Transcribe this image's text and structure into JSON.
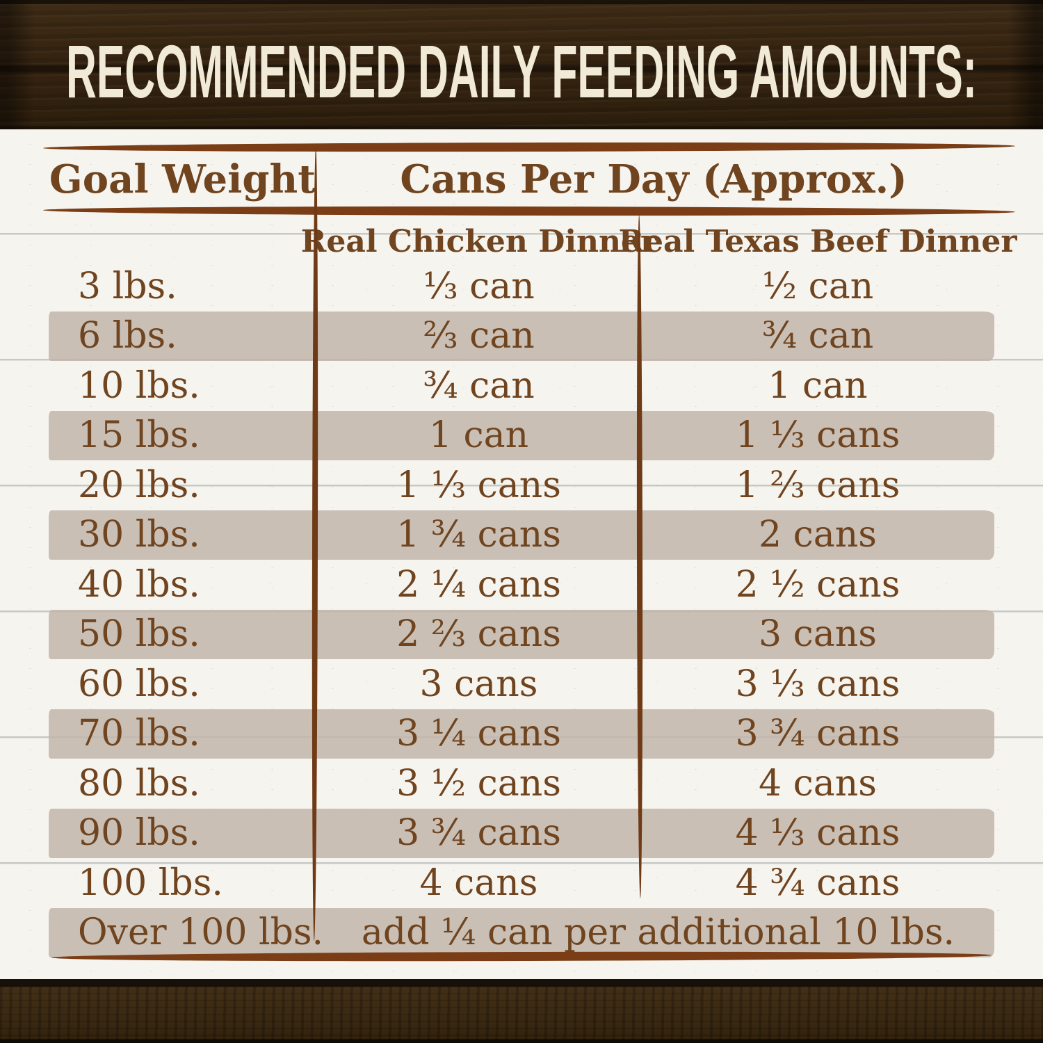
{
  "title": "RECOMMENDED DAILY FEEDING AMOUNTS:",
  "colors": {
    "wood_dark": "#362411",
    "title_cream": "#f1ead6",
    "text_brown": "#6f441f",
    "rule_brown": "#7a3d15",
    "band_beige": "#cbc1b5",
    "background": "#f6f4ef"
  },
  "chart_data": {
    "type": "table",
    "title": "RECOMMENDED DAILY FEEDING AMOUNTS:",
    "group_header": "Cans Per Day (Approx.)",
    "columns": [
      "Goal Weight",
      "Real Chicken Dinner",
      "Real Texas Beef Dinner"
    ],
    "rows": [
      {
        "weight": "3 lbs.",
        "chicken": "⅓ can",
        "beef": "½ can"
      },
      {
        "weight": "6 lbs.",
        "chicken": "⅔ can",
        "beef": "¾ can"
      },
      {
        "weight": "10 lbs.",
        "chicken": "¾ can",
        "beef": "1 can"
      },
      {
        "weight": "15 lbs.",
        "chicken": "1 can",
        "beef": "1 ⅓ cans"
      },
      {
        "weight": "20 lbs.",
        "chicken": "1 ⅓ cans",
        "beef": "1 ⅔ cans"
      },
      {
        "weight": "30 lbs.",
        "chicken": "1 ¾ cans",
        "beef": "2 cans"
      },
      {
        "weight": "40 lbs.",
        "chicken": "2 ¼ cans",
        "beef": "2 ½ cans"
      },
      {
        "weight": "50 lbs.",
        "chicken": "2 ⅔ cans",
        "beef": "3 cans"
      },
      {
        "weight": "60 lbs.",
        "chicken": "3 cans",
        "beef": "3 ⅓ cans"
      },
      {
        "weight": "70 lbs.",
        "chicken": "3 ¼ cans",
        "beef": "3 ¾ cans"
      },
      {
        "weight": "80 lbs.",
        "chicken": "3 ½ cans",
        "beef": "4 cans"
      },
      {
        "weight": "90 lbs.",
        "chicken": "3 ¾ cans",
        "beef": "4 ⅓ cans"
      },
      {
        "weight": "100 lbs.",
        "chicken": "4 cans",
        "beef": "4 ¾ cans"
      }
    ],
    "footer_row": {
      "weight": "Over 100 lbs.",
      "value": "add ¼ can per additional 10 lbs."
    },
    "layout": {
      "highlighted_rows": "alternating starting with 6 lbs.",
      "grid": "hand-drawn brown rules"
    }
  }
}
